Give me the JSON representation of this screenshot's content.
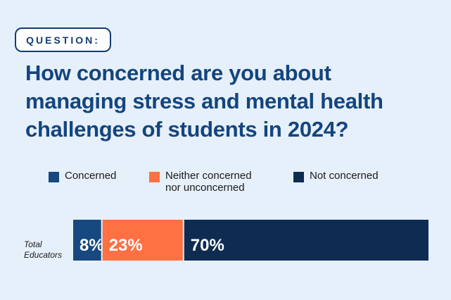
{
  "question_label": "QUESTION:",
  "title_lines": [
    "How concerned are you about",
    "managing stress and mental health",
    "challenges of students in 2024?"
  ],
  "legend": [
    {
      "lines": [
        "Concerned"
      ],
      "color": "#17487f"
    },
    {
      "lines": [
        "Neither concerned",
        "nor unconcerned"
      ],
      "color": "#ff7043"
    },
    {
      "lines": [
        "Not concerned"
      ],
      "color": "#0e2c52"
    }
  ],
  "row_label_lines": [
    "Total",
    "Educators"
  ],
  "chart_data": {
    "type": "bar",
    "orientation": "horizontal-stacked",
    "title": "How concerned are you about managing stress and mental health challenges of students in 2024?",
    "categories": [
      "Total Educators"
    ],
    "series": [
      {
        "name": "Concerned",
        "values": [
          8
        ],
        "label": "8%",
        "color": "#17487f"
      },
      {
        "name": "Neither concerned nor unconcerned",
        "values": [
          23
        ],
        "label": "23%",
        "color": "#ff7043"
      },
      {
        "name": "Not concerned",
        "values": [
          70
        ],
        "label": "70%",
        "color": "#0e2c52"
      }
    ],
    "unit": "%",
    "legend_position": "top"
  }
}
